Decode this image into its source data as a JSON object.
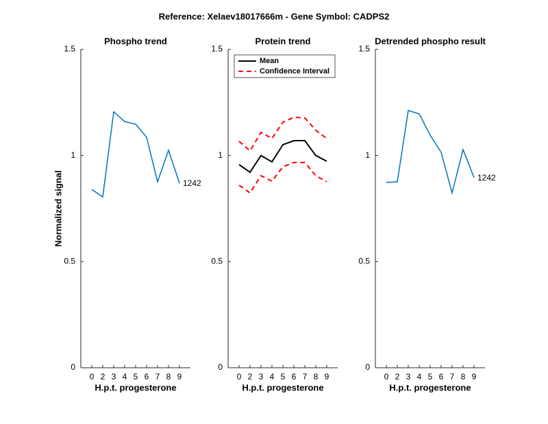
{
  "title": "Reference:  Xelaev18017666m - Gene Symbol:  CADPS2",
  "chart_data": [
    {
      "type": "line",
      "title": "Phospho trend",
      "ylabel": "Normalized signal",
      "xlabel": "H.p.t. progesterone",
      "categories": [
        "0",
        "2",
        "3",
        "4",
        "5",
        "6",
        "7",
        "8",
        "9"
      ],
      "ylim": [
        0,
        1.5
      ],
      "yticks": [
        0,
        0.5,
        1,
        1.5
      ],
      "series": [
        {
          "name": "1242",
          "color": "#0072bd",
          "values": [
            0.84,
            0.805,
            1.206,
            1.16,
            1.148,
            1.086,
            0.876,
            1.025,
            0.87
          ]
        }
      ],
      "annotation": "1242"
    },
    {
      "type": "line",
      "title": "Protein trend",
      "xlabel": "H.p.t. progesterone",
      "categories": [
        "0",
        "2",
        "3",
        "4",
        "5",
        "6",
        "7",
        "8",
        "9"
      ],
      "ylim": [
        0,
        1.5
      ],
      "yticks": [
        0,
        0.5,
        1,
        1.5
      ],
      "legend": "upper left",
      "series": [
        {
          "name": "Mean",
          "color": "#000000",
          "values": [
            0.957,
            0.921,
            1.0,
            0.97,
            1.051,
            1.07,
            1.07,
            1.0,
            0.973
          ]
        },
        {
          "name": "Confidence Interval",
          "color": "#ff0000",
          "dashed": true,
          "upper": [
            1.067,
            1.022,
            1.109,
            1.08,
            1.157,
            1.18,
            1.177,
            1.119,
            1.08
          ],
          "lower": [
            0.86,
            0.824,
            0.905,
            0.879,
            0.947,
            0.967,
            0.967,
            0.905,
            0.876
          ]
        }
      ]
    },
    {
      "type": "line",
      "title": "Detrended phospho result",
      "xlabel": "H.p.t. progesterone",
      "categories": [
        "0",
        "2",
        "3",
        "4",
        "5",
        "6",
        "7",
        "8",
        "9"
      ],
      "ylim": [
        0,
        1.5
      ],
      "yticks": [
        0,
        0.5,
        1,
        1.5
      ],
      "series": [
        {
          "name": "1242",
          "color": "#0072bd",
          "values": [
            0.873,
            0.876,
            1.212,
            1.196,
            1.096,
            1.015,
            0.824,
            1.028,
            0.896
          ]
        }
      ],
      "annotation": "1242"
    }
  ]
}
